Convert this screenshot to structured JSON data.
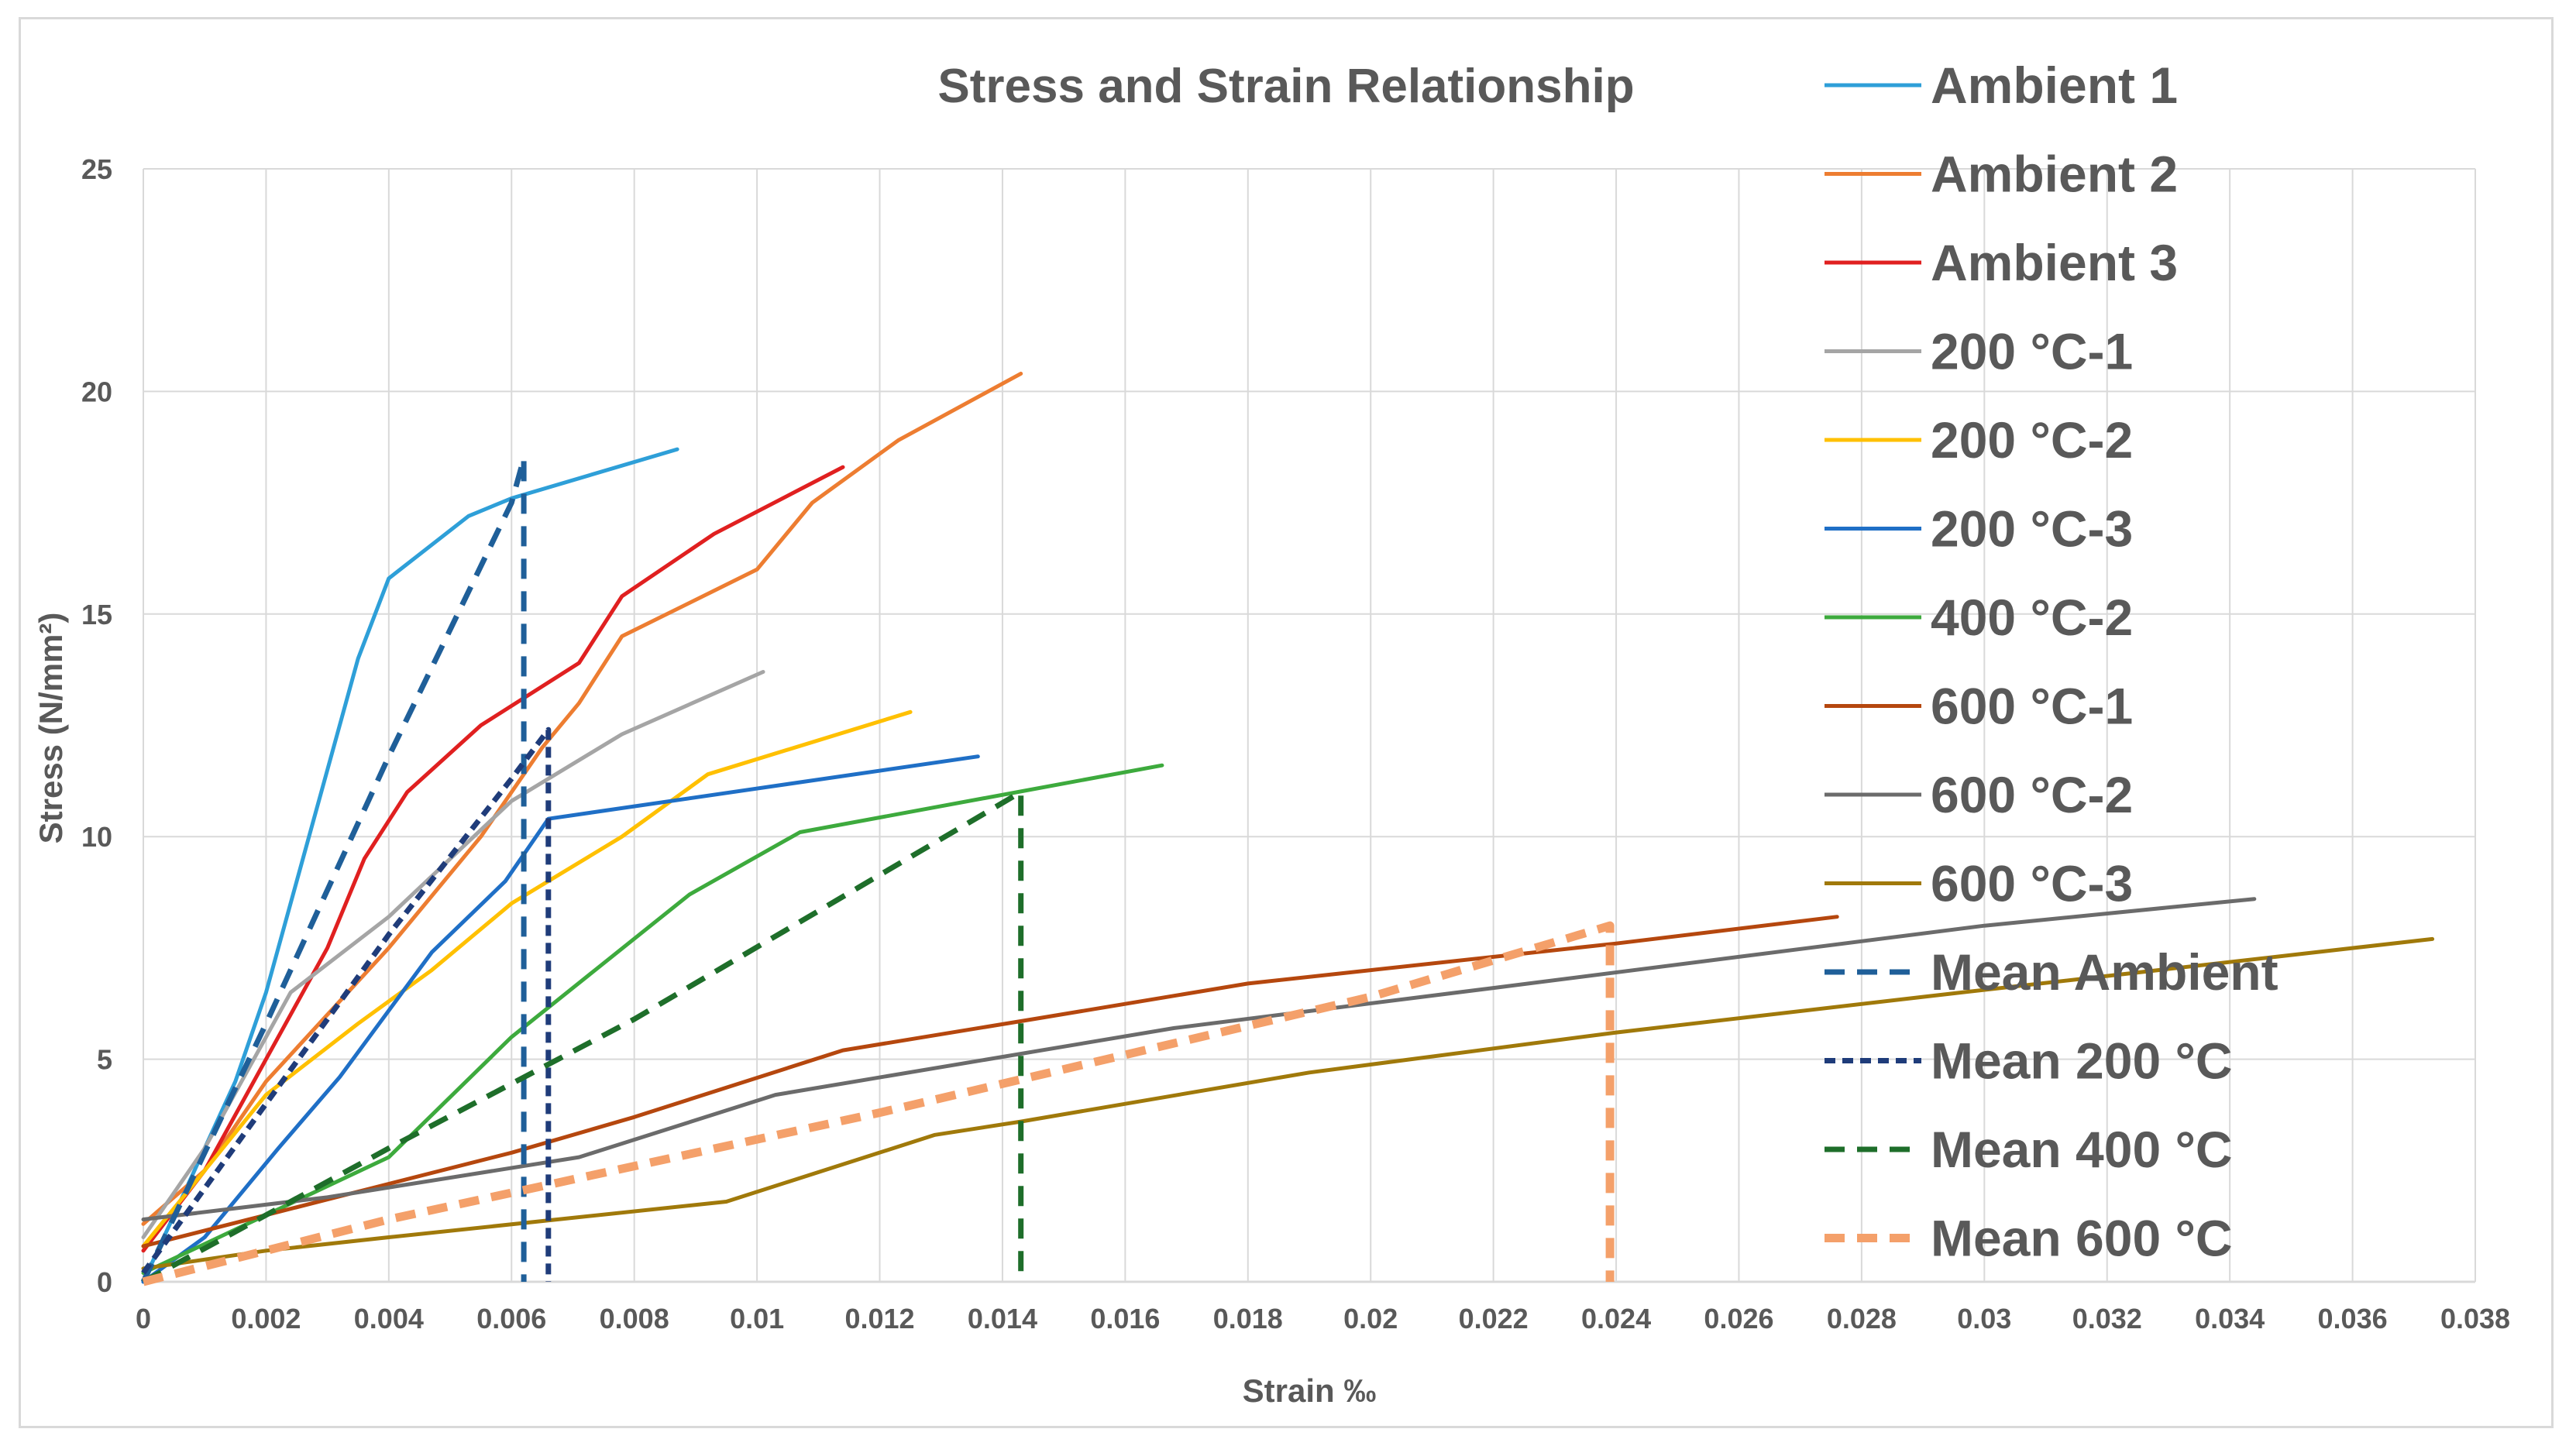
{
  "chart_data": {
    "type": "line",
    "title": "Stress and Strain Relationship",
    "xlabel": "Strain ‰",
    "ylabel": "Stress (N/mm²)",
    "xlim": [
      0,
      0.038
    ],
    "ylim": [
      0,
      25
    ],
    "xticks": [
      0,
      0.002,
      0.004,
      0.006,
      0.008,
      0.01,
      0.012,
      0.014,
      0.016,
      0.018,
      0.02,
      0.022,
      0.024,
      0.026,
      0.028,
      0.03,
      0.032,
      0.034,
      0.036,
      0.038
    ],
    "xtick_labels": [
      "0",
      "0.002",
      "0.004",
      "0.006",
      "0.008",
      "0.01",
      "0.012",
      "0.014",
      "0.016",
      "0.018",
      "0.02",
      "0.022",
      "0.024",
      "0.026",
      "0.028",
      "0.03",
      "0.032",
      "0.034",
      "0.036",
      "0.038"
    ],
    "yticks": [
      0,
      5,
      10,
      15,
      20,
      25
    ],
    "ytick_labels": [
      "0",
      "5",
      "10",
      "15",
      "20",
      "25"
    ],
    "grid": true,
    "legend_position": "right",
    "series": [
      {
        "name": "Ambient 1",
        "color": "#2E9FD8",
        "dash": "solid",
        "x": [
          0,
          0.001,
          0.0015,
          0.002,
          0.0025,
          0.003,
          0.0035,
          0.004,
          0.0053,
          0.006,
          0.0087
        ],
        "y": [
          0,
          3,
          4.5,
          6.5,
          9,
          11.5,
          14,
          15.8,
          17.2,
          17.6,
          18.7
        ]
      },
      {
        "name": "Ambient 2",
        "color": "#ED7D31",
        "dash": "solid",
        "x": [
          0,
          0.001,
          0.002,
          0.003,
          0.004,
          0.0055,
          0.0065,
          0.0071,
          0.0078,
          0.01,
          0.0109,
          0.0123,
          0.0143
        ],
        "y": [
          1.3,
          2.5,
          4.5,
          6,
          7.5,
          10,
          12,
          13,
          14.5,
          16,
          17.5,
          18.9,
          20.4
        ]
      },
      {
        "name": "Ambient 3",
        "color": "#E02020",
        "dash": "solid",
        "x": [
          0,
          0.001,
          0.002,
          0.003,
          0.0036,
          0.0043,
          0.0055,
          0.0071,
          0.0078,
          0.0093,
          0.0114
        ],
        "y": [
          0.7,
          2.5,
          5,
          7.5,
          9.5,
          11,
          12.5,
          13.9,
          15.4,
          16.8,
          18.3
        ]
      },
      {
        "name": "200 °C-1",
        "color": "#A5A5A5",
        "dash": "solid",
        "x": [
          0,
          0.001,
          0.0024,
          0.004,
          0.006,
          0.0078,
          0.0101
        ],
        "y": [
          1,
          3,
          6.5,
          8.2,
          10.8,
          12.3,
          13.7
        ]
      },
      {
        "name": "200 °C-2",
        "color": "#FFC000",
        "dash": "solid",
        "x": [
          0,
          0.001,
          0.002,
          0.0035,
          0.0047,
          0.006,
          0.0078,
          0.0092,
          0.0125
        ],
        "y": [
          0.8,
          2.5,
          4.2,
          5.8,
          7,
          8.5,
          10,
          11.4,
          12.8
        ]
      },
      {
        "name": "200 °C-3",
        "color": "#1F6FC6",
        "dash": "solid",
        "x": [
          0,
          0.001,
          0.0022,
          0.0032,
          0.0047,
          0.0059,
          0.0066,
          0.0136
        ],
        "y": [
          0,
          1,
          3,
          4.6,
          7.4,
          9,
          10.4,
          11.8
        ]
      },
      {
        "name": "400 °C-2",
        "color": "#3DAA3D",
        "dash": "solid",
        "x": [
          0,
          0.002,
          0.004,
          0.006,
          0.0089,
          0.0107,
          0.0166
        ],
        "y": [
          0.2,
          1.5,
          2.8,
          5.5,
          8.7,
          10.1,
          11.6
        ]
      },
      {
        "name": "600 °C-1",
        "color": "#B5470E",
        "dash": "solid",
        "x": [
          0,
          0.002,
          0.004,
          0.006,
          0.008,
          0.0114,
          0.0145,
          0.018,
          0.02,
          0.024,
          0.0276
        ],
        "y": [
          0.8,
          1.5,
          2.2,
          2.9,
          3.7,
          5.2,
          5.9,
          6.7,
          7,
          7.6,
          8.2
        ]
      },
      {
        "name": "600 °C-2",
        "color": "#6B6B6B",
        "dash": "solid",
        "x": [
          0,
          0.003,
          0.0071,
          0.0103,
          0.0168,
          0.022,
          0.026,
          0.03,
          0.0344
        ],
        "y": [
          1.4,
          1.9,
          2.8,
          4.2,
          5.7,
          6.6,
          7.3,
          8,
          8.6
        ]
      },
      {
        "name": "600 °C-3",
        "color": "#A0790A",
        "dash": "solid",
        "x": [
          0,
          0.002,
          0.004,
          0.0095,
          0.0129,
          0.0143,
          0.019,
          0.024,
          0.029,
          0.0373
        ],
        "y": [
          0.3,
          0.7,
          1,
          1.8,
          3.3,
          3.6,
          4.7,
          5.6,
          6.4,
          7.7
        ]
      },
      {
        "name": "Mean Ambient",
        "color": "#1F5F99",
        "dash": "dash",
        "x": [
          0,
          0.002,
          0.004,
          0.006,
          0.0062,
          0.0062
        ],
        "y": [
          0,
          5.8,
          11.8,
          17.5,
          18.5,
          0
        ]
      },
      {
        "name": "Mean 200 °C",
        "color": "#1F3C7A",
        "dash": "dot",
        "x": [
          0,
          0.002,
          0.004,
          0.006,
          0.0066,
          0.0066
        ],
        "y": [
          0.2,
          4,
          7.8,
          11.3,
          12.4,
          0
        ]
      },
      {
        "name": "Mean 400 °C",
        "color": "#1E6E2A",
        "dash": "dash",
        "x": [
          0,
          0.004,
          0.008,
          0.0143,
          0.0143
        ],
        "y": [
          0,
          3,
          5.9,
          11,
          0
        ]
      },
      {
        "name": "Mean 600 °C",
        "color": "#F4A06A",
        "dash": "thickdash",
        "x": [
          0,
          0.004,
          0.008,
          0.012,
          0.016,
          0.02,
          0.0239,
          0.0239
        ],
        "y": [
          0,
          1.4,
          2.6,
          3.8,
          5.1,
          6.4,
          8,
          0
        ]
      }
    ]
  }
}
